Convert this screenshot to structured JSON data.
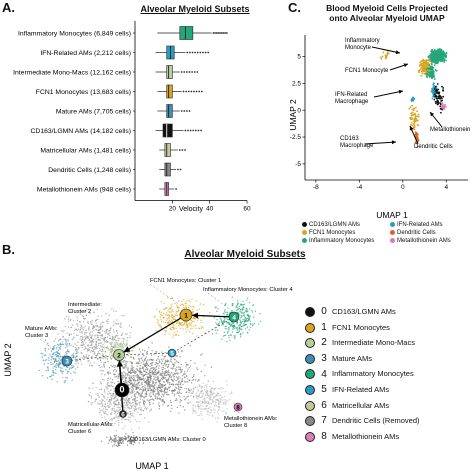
{
  "panels": {
    "a_letter": "A.",
    "b_letter": "B.",
    "c_letter": "C.",
    "a_title": "Alveolar Myeloid Subsets",
    "b_title": "Alveolar Myeloid Subsets",
    "c_title_line1": "Blood Myeloid Cells Projected",
    "c_title_line2": "onto Alveolar Myeloid UMAP"
  },
  "chart_data": [
    {
      "type": "boxplot",
      "title": "Alveolar Myeloid Subsets",
      "xlabel": "Velocity",
      "xlim": [
        0,
        60
      ],
      "xticks": [
        20,
        40,
        60
      ],
      "categories": [
        "Inflammatory Monocytes (6,849 cells)",
        "IFN-Related AMs (2,212 cells)",
        "Intermediate Mono-Macs (12,162 cells)",
        "FCN1 Monocytes (13,683 cells)",
        "Mature AMs (7,705 cells)",
        "CD163/LGMN AMs (14,182 cells)",
        "Matricellular AMs (1,481 cells)",
        "Dendritic Cells (1,248 cells)",
        "Metallothionein AMs (948 cells)"
      ],
      "colors": [
        "#23a67a",
        "#2b9bc1",
        "#b7cf9a",
        "#d8a520",
        "#3d8fb4",
        "#111111",
        "#c7c89c",
        "#888888",
        "#d67fb8"
      ],
      "boxes": [
        {
          "whisker_low": 12,
          "q1": 24,
          "median": 27,
          "q3": 31,
          "whisker_high": 41,
          "outlier_max": 50
        },
        {
          "whisker_low": 11,
          "q1": 17,
          "median": 19,
          "q3": 21,
          "whisker_high": 27,
          "outlier_max": 40
        },
        {
          "whisker_low": 11,
          "q1": 17,
          "median": 18,
          "q3": 20,
          "whisker_high": 24,
          "outlier_max": 34
        },
        {
          "whisker_low": 12,
          "q1": 17,
          "median": 18,
          "q3": 20,
          "whisker_high": 25,
          "outlier_max": 37
        },
        {
          "whisker_low": 12,
          "q1": 17,
          "median": 18,
          "q3": 20,
          "whisker_high": 24,
          "outlier_max": 30
        },
        {
          "whisker_low": 11,
          "q1": 15,
          "median": 17,
          "q3": 20,
          "whisker_high": 26,
          "outlier_max": 36
        },
        {
          "whisker_low": 13,
          "q1": 16,
          "median": 17,
          "q3": 19,
          "whisker_high": 23,
          "outlier_max": 27
        },
        {
          "whisker_low": 13,
          "q1": 16,
          "median": 17,
          "q3": 19,
          "whisker_high": 22,
          "outlier_max": 25
        },
        {
          "whisker_low": 13,
          "q1": 16,
          "median": 17,
          "q3": 18,
          "whisker_high": 21,
          "outlier_max": 23
        }
      ]
    },
    {
      "type": "scatter",
      "title": "Blood Myeloid Cells Projected onto Alveolar Myeloid UMAP",
      "xlabel": "UMAP 1",
      "ylabel": "UMAP 2",
      "xlim": [
        -9,
        6
      ],
      "ylim": [
        -6.5,
        7
      ],
      "xticks": [
        -8,
        -4,
        0,
        4
      ],
      "yticks": [
        -5,
        -2.5,
        0,
        2.5,
        5
      ],
      "annotations": [
        "Inflammatory Monocyte",
        "FCN1 Monocyte",
        "IFN-Related Macrophage",
        "Metallothionein",
        "CD163 Macrophage",
        "Dendritic Cells"
      ],
      "legend": [
        {
          "label": "CD163/LGMN AMs",
          "color": "#111111"
        },
        {
          "label": "FCN1 Monocytes",
          "color": "#d8a520"
        },
        {
          "label": "Inflammatory Monocytes",
          "color": "#23a67a"
        },
        {
          "label": "IFN-Related AMs",
          "color": "#2b9bc1"
        },
        {
          "label": "Dendritic Cells",
          "color": "#d0692a"
        },
        {
          "label": "Metallothionein AMs",
          "color": "#d67fb8"
        }
      ]
    },
    {
      "type": "scatter",
      "title": "Alveolar Myeloid Subsets",
      "xlabel": "UMAP 1",
      "ylabel": "UMAP 2",
      "cluster_labels": [
        "FCN1 Monocytes: Cluster 1",
        "Inflammatory Monocytes: Cluster 4",
        "Intermediate: Cluster 2",
        "Mature AMs: Cluster 3",
        "Matricellular AMs: Cluster 6",
        "Metallothionein AMs: Cluster 8",
        "CD163/LGMN AMs: Cluster 0"
      ],
      "node_numbers": [
        "0",
        "1",
        "2",
        "3",
        "4",
        "5",
        "6",
        "7",
        "8"
      ],
      "legend": [
        {
          "num": "0",
          "label": "CD163/LGMN AMs",
          "color": "#111111"
        },
        {
          "num": "1",
          "label": "FCN1 Monocytes",
          "color": "#d8a520"
        },
        {
          "num": "2",
          "label": "Intermediate Mono-Macs",
          "color": "#b7cf9a"
        },
        {
          "num": "3",
          "label": "Mature AMs",
          "color": "#3d8fb4"
        },
        {
          "num": "4",
          "label": "Inflammatory Monocytes",
          "color": "#23a67a"
        },
        {
          "num": "5",
          "label": "IFN-Related AMs",
          "color": "#2b9bc1"
        },
        {
          "num": "6",
          "label": "Matricellular AMs",
          "color": "#c7c89c"
        },
        {
          "num": "7",
          "label": "Dendritic Cells (Removed)",
          "color": "#888888"
        },
        {
          "num": "8",
          "label": "Metallothionein AMs",
          "color": "#d67fb8"
        }
      ]
    }
  ]
}
